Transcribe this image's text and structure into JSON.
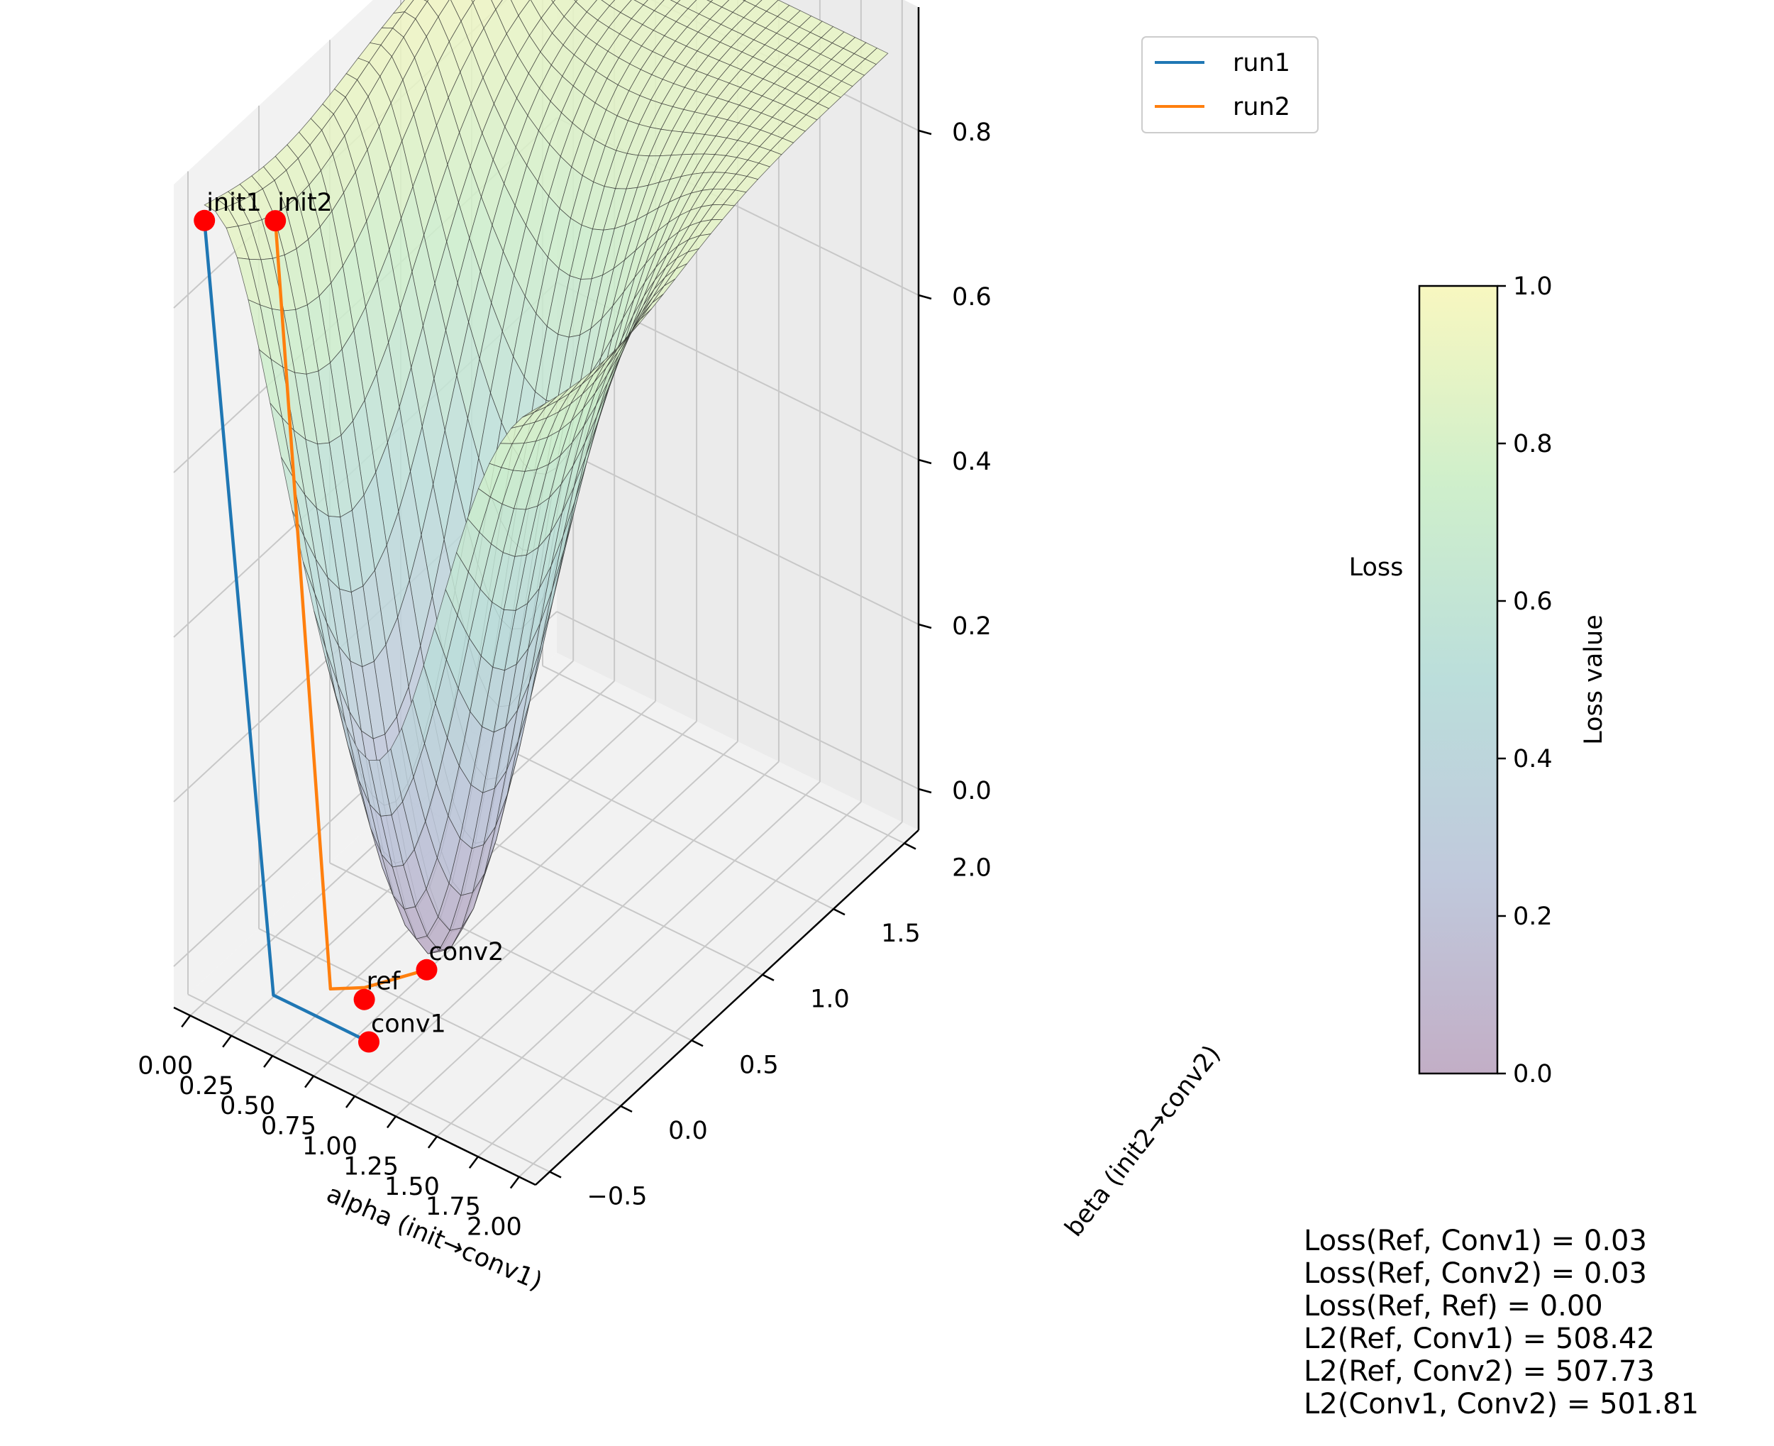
{
  "chart_data": {
    "type": "surface",
    "x": {
      "label": "alpha (init→conv1)",
      "ticks": [
        "0.00",
        "0.25",
        "0.50",
        "0.75",
        "1.00",
        "1.25",
        "1.50",
        "1.75",
        "2.00"
      ],
      "range": [
        -0.1,
        2.1
      ]
    },
    "y": {
      "label": "beta (init2→conv2)",
      "ticks": [
        "−0.5",
        "0.0",
        "0.5",
        "1.0",
        "1.5",
        "2.0"
      ],
      "range": [
        -0.6,
        2.1
      ]
    },
    "z": {
      "label": "Loss",
      "ticks": [
        "0.0",
        "0.2",
        "0.4",
        "0.6",
        "0.8"
      ],
      "range": [
        -0.05,
        0.95
      ]
    },
    "surface": {
      "alpha_range": [
        0.0,
        2.0
      ],
      "beta_range": [
        -0.5,
        2.0
      ],
      "minimum_near": {
        "alpha": 1.0,
        "beta": 0.0,
        "loss": 0.03
      },
      "plateau_loss": 0.9
    },
    "series": [
      {
        "name": "run1",
        "color": "#1f77b4",
        "points": [
          {
            "alpha": 0.0,
            "beta": -0.5,
            "loss": 0.9
          },
          {
            "alpha": 0.42,
            "beta": -0.5,
            "loss": 0.0
          },
          {
            "alpha": 0.6,
            "beta": -0.5,
            "loss": 0.0
          },
          {
            "alpha": 0.9,
            "beta": -0.5,
            "loss": 0.0
          },
          {
            "alpha": 1.0,
            "beta": -0.5,
            "loss": 0.0
          }
        ]
      },
      {
        "name": "run2",
        "color": "#ff7f0e",
        "points": [
          {
            "alpha": 0.0,
            "beta": 0.0,
            "loss": 0.82
          },
          {
            "alpha": 0.62,
            "beta": -0.33,
            "loss": 0.0
          },
          {
            "alpha": 0.75,
            "beta": -0.24,
            "loss": 0.0
          },
          {
            "alpha": 0.92,
            "beta": 0.0,
            "loss": 0.0
          }
        ]
      }
    ],
    "markers": [
      {
        "label": "init1",
        "alpha": 0.0,
        "beta": -0.5,
        "loss": 0.9
      },
      {
        "label": "init2",
        "alpha": 0.0,
        "beta": 0.0,
        "loss": 0.82
      },
      {
        "label": "ref",
        "alpha": 0.8,
        "beta": -0.3,
        "loss": 0.0
      },
      {
        "label": "conv1",
        "alpha": 1.0,
        "beta": -0.5,
        "loss": 0.0
      },
      {
        "label": "conv2",
        "alpha": 0.92,
        "beta": 0.0,
        "loss": 0.0
      }
    ],
    "marker_color": "#ff0000",
    "colorbar": {
      "label": "Loss value",
      "ticks": [
        "0.0",
        "0.2",
        "0.4",
        "0.6",
        "0.8",
        "1.0"
      ],
      "range": [
        0,
        1
      ],
      "colormap": "viridis",
      "alpha": 0.3
    },
    "legend": {
      "placement": "top-right",
      "entries": [
        "run1",
        "run2"
      ]
    },
    "grid": true,
    "stats": [
      "Loss(Ref, Conv1) = 0.03",
      "Loss(Ref, Conv2) = 0.03",
      "Loss(Ref, Ref) = 0.00",
      "L2(Ref, Conv1) = 508.42",
      "L2(Ref, Conv2) = 507.73",
      "L2(Conv1, Conv2) = 501.81"
    ]
  }
}
